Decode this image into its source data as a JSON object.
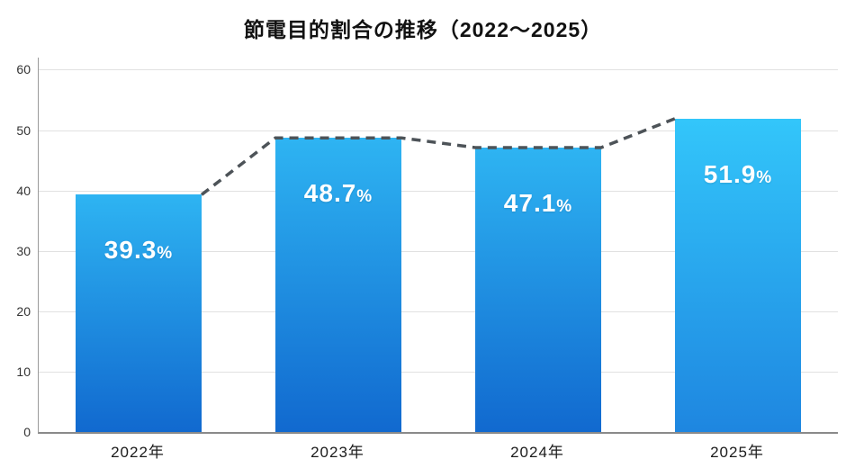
{
  "chart_data": {
    "type": "bar",
    "title": "節電目的割合の推移（2022〜2025）",
    "categories": [
      "2022年",
      "2023年",
      "2024年",
      "2025年"
    ],
    "values": [
      39.3,
      48.7,
      47.1,
      51.9
    ],
    "value_labels": [
      "39.3%",
      "48.7%",
      "47.1%",
      "51.9%"
    ],
    "ylim": [
      0,
      62
    ],
    "yticks": [
      0,
      10,
      20,
      30,
      40,
      50,
      60
    ],
    "grid": true,
    "legend": "none",
    "colors": {
      "bar_gradient_top": "#2eb4f2",
      "bar_gradient_bottom": "#126cc",
      "bar_gradient_bottom_fixed": "#1169cf",
      "last_bar_gradient_top": "#33c6fa",
      "last_bar_gradient_bottom": "#1e86e0",
      "trend_line": "#4d5358",
      "label_text": "#ffffff",
      "gridline": "#e1e1e1"
    }
  }
}
